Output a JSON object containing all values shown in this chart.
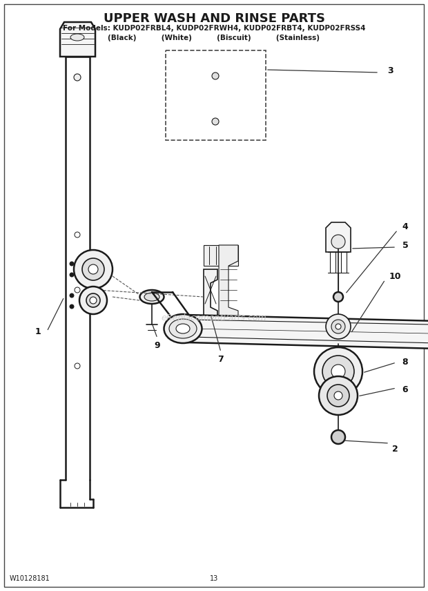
{
  "title": "UPPER WASH AND RINSE PARTS",
  "subtitle_line1": "For Models: KUDP02FRBL4, KUDP02FRWH4, KUDP02FRBT4, KUDP02FRSS4",
  "subtitle_line2": "(Black)          (White)          (Biscuit)          (Stainless)",
  "footer_left": "W10128181",
  "footer_center": "13",
  "bg_color": "#ffffff",
  "line_color": "#1a1a1a",
  "watermark_text": "eReplacementParts.com",
  "watermark_color": "#cccccc"
}
